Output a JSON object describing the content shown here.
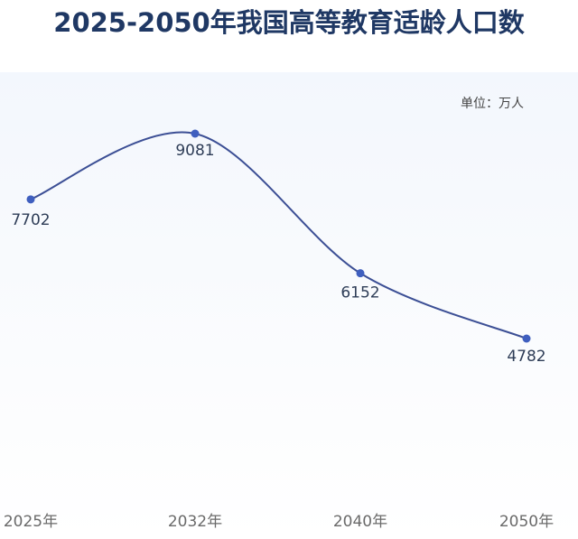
{
  "chart_data": {
    "type": "line",
    "title": "2025-2050年我国高等教育适龄人口数",
    "unit_label": "单位：万人",
    "categories": [
      "2025年",
      "2032年",
      "2040年",
      "2050年"
    ],
    "series": [
      {
        "values": [
          7702,
          9081,
          6152,
          4782
        ]
      }
    ],
    "smooth": true,
    "grid": false,
    "colors": {
      "line": "#3c4f95",
      "point": "#3f5fbf",
      "title": "#1f3864"
    }
  }
}
